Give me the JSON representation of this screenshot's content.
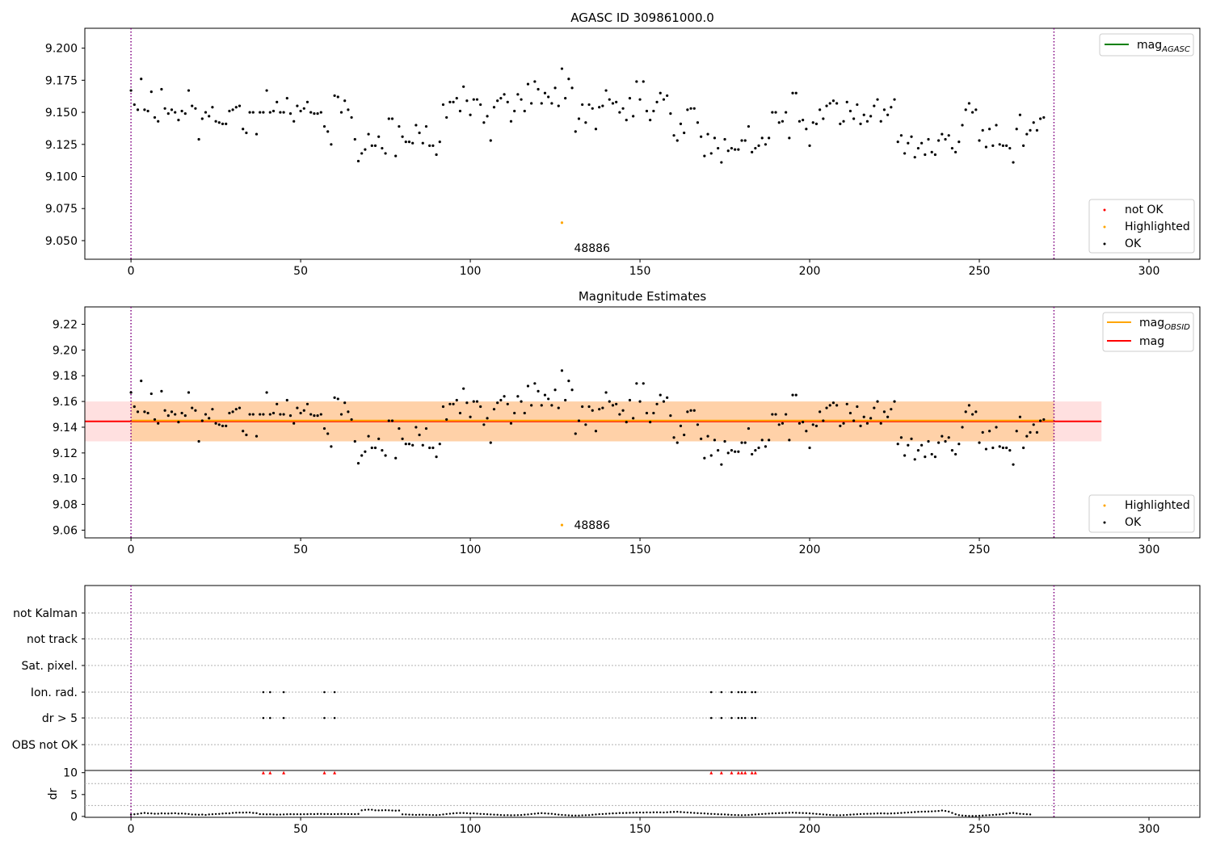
{
  "chart_data": [
    {
      "type": "scatter",
      "title": "AGASC ID 309861000.0",
      "xlim": [
        -13.6,
        315.0
      ],
      "ylim": [
        9.0355,
        9.2155
      ],
      "yticks": [
        9.05,
        9.075,
        9.1,
        9.125,
        9.15,
        9.175,
        9.2
      ],
      "ytick_labels": [
        "9.050",
        "9.075",
        "9.100",
        "9.125",
        "9.150",
        "9.175",
        "9.200"
      ],
      "xticks": [
        0,
        50,
        100,
        150,
        200,
        250,
        300
      ],
      "xtick_labels": [
        "0",
        "50",
        "100",
        "150",
        "200",
        "250",
        "300"
      ],
      "vlines": [
        0,
        272
      ],
      "highlight": {
        "x": 127,
        "y": 9.064,
        "label": "48886"
      },
      "legend_top": {
        "entries": [
          {
            "label": "mag",
            "sub": "AGASC",
            "color": "#008000"
          }
        ],
        "position": "top-right"
      },
      "legend_bottom": {
        "entries": [
          {
            "label": "not OK",
            "color": "#ff0000"
          },
          {
            "label": "Highlighted",
            "color": "#ffa500"
          },
          {
            "label": "OK",
            "color": "#000000"
          }
        ],
        "position": "lower-right"
      }
    },
    {
      "type": "scatter",
      "title": "Magnitude Estimates",
      "xlim": [
        -13.6,
        315.0
      ],
      "ylim": [
        9.054,
        9.2335
      ],
      "yticks": [
        9.06,
        9.08,
        9.1,
        9.12,
        9.14,
        9.16,
        9.18,
        9.2,
        9.22
      ],
      "ytick_labels": [
        "9.06",
        "9.08",
        "9.10",
        "9.12",
        "9.14",
        "9.16",
        "9.18",
        "9.20",
        "9.22"
      ],
      "xticks": [
        0,
        50,
        100,
        150,
        200,
        250,
        300
      ],
      "xtick_labels": [
        "0",
        "50",
        "100",
        "150",
        "200",
        "250",
        "300"
      ],
      "vlines": [
        0,
        272
      ],
      "mag": 9.1445,
      "mag_obsid": 9.1445,
      "band_mag": [
        9.129,
        9.16
      ],
      "band_mag_obsid": [
        9.129,
        9.16
      ],
      "band_mag_range": [
        -13.6,
        286
      ],
      "band_obsid_range": [
        0,
        272
      ],
      "highlight": {
        "x": 127,
        "y": 9.064,
        "label": "48886"
      },
      "legend_top": {
        "entries": [
          {
            "label": "mag",
            "sub": "OBSID",
            "color": "#ffa500"
          },
          {
            "label": "mag",
            "sub": "",
            "color": "#ff0000"
          }
        ],
        "position": "top-right"
      },
      "legend_bottom": {
        "entries": [
          {
            "label": "Highlighted",
            "color": "#ffa500"
          },
          {
            "label": "OK",
            "color": "#000000"
          }
        ],
        "position": "lower-right"
      }
    },
    {
      "type": "flags",
      "categories": [
        "not Kalman",
        "not track",
        "Sat. pixel.",
        "Ion. rad.",
        "dr > 5",
        "OBS not OK"
      ],
      "flag_indices": {
        "Ion. rad.": [
          39,
          41,
          45,
          57,
          60,
          171,
          174,
          177,
          179,
          180,
          181,
          183,
          184
        ],
        "dr > 5": [
          39,
          41,
          45,
          57,
          60,
          171,
          174,
          177,
          179,
          180,
          181,
          183,
          184
        ]
      },
      "vlines": [
        0,
        272
      ]
    },
    {
      "type": "scatter",
      "ylabel": "dr",
      "ylim": [
        -0.2,
        10.5
      ],
      "yticks": [
        0,
        5,
        10
      ],
      "ytick_labels": [
        "0",
        "5",
        "10"
      ],
      "xticks": [
        0,
        50,
        100,
        150,
        200,
        250,
        300
      ],
      "xtick_labels": [
        "0",
        "50",
        "100",
        "150",
        "200",
        "250",
        "300"
      ],
      "clipped_high_indices": [
        39,
        41,
        45,
        57,
        60,
        171,
        174,
        177,
        179,
        180,
        181,
        183,
        184
      ],
      "dr_values": [
        0.42,
        0.5,
        0.58,
        0.71,
        0.8,
        0.72,
        0.69,
        0.61,
        0.62,
        0.7,
        0.67,
        0.66,
        0.71,
        0.73,
        0.64,
        0.67,
        0.61,
        0.55,
        0.44,
        0.43,
        0.39,
        0.43,
        0.35,
        0.45,
        0.5,
        0.55,
        0.58,
        0.66,
        0.71,
        0.7,
        0.81,
        0.85,
        0.88,
        0.87,
        0.89,
        0.9,
        0.8,
        0.75,
        0.52,
        0.5,
        0.48,
        0.5,
        0.45,
        0.42,
        0.44,
        0.46,
        0.5,
        0.52,
        0.5,
        0.51,
        0.5,
        0.51,
        0.52,
        0.55,
        0.52,
        0.57,
        0.58,
        0.54,
        0.55,
        0.52,
        0.53,
        0.54,
        0.57,
        0.55,
        0.54,
        0.53,
        0.52,
        0.56,
        1.4,
        1.5,
        1.55,
        1.52,
        1.4,
        1.38,
        1.4,
        1.42,
        1.4,
        1.35,
        1.32,
        1.35,
        0.48,
        0.45,
        0.42,
        0.38,
        0.35,
        0.38,
        0.39,
        0.37,
        0.35,
        0.32,
        0.3,
        0.35,
        0.45,
        0.55,
        0.62,
        0.7,
        0.76,
        0.78,
        0.78,
        0.74,
        0.68,
        0.7,
        0.65,
        0.58,
        0.55,
        0.5,
        0.46,
        0.41,
        0.38,
        0.32,
        0.28,
        0.3,
        0.26,
        0.28,
        0.3,
        0.32,
        0.4,
        0.45,
        0.55,
        0.62,
        0.7,
        0.75,
        0.7,
        0.65,
        0.6,
        0.5,
        0.42,
        0.35,
        0.3,
        0.25,
        0.2,
        0.2,
        0.2,
        0.25,
        0.28,
        0.3,
        0.38,
        0.45,
        0.52,
        0.55,
        0.6,
        0.65,
        0.7,
        0.72,
        0.78,
        0.78,
        0.8,
        0.82,
        0.85,
        0.88,
        0.9,
        0.88,
        0.92,
        0.9,
        0.93,
        0.95,
        0.92,
        0.9,
        0.95,
        1.0,
        1.02,
        1.05,
        1.0,
        0.95,
        0.9,
        0.85,
        0.8,
        0.75,
        0.72,
        0.68,
        0.62,
        0.58,
        0.55,
        0.5,
        0.48,
        0.45,
        0.4,
        0.35,
        0.32,
        0.3,
        0.28,
        0.3,
        0.32,
        0.38,
        0.45,
        0.5,
        0.55,
        0.6,
        0.65,
        0.7,
        0.72,
        0.75,
        0.78,
        0.8,
        0.82,
        0.85,
        0.82,
        0.8,
        0.78,
        0.75,
        0.7,
        0.65,
        0.58,
        0.52,
        0.45,
        0.4,
        0.35,
        0.3,
        0.28,
        0.28,
        0.3,
        0.35,
        0.4,
        0.45,
        0.5,
        0.55,
        0.58,
        0.6,
        0.62,
        0.65,
        0.68,
        0.7,
        0.68,
        0.65,
        0.68,
        0.7,
        0.75,
        0.8,
        0.85,
        0.9,
        0.95,
        1.0,
        1.05,
        1.08,
        1.1,
        1.12,
        1.15,
        1.2,
        1.25,
        1.35,
        1.25,
        1.1,
        0.8,
        0.5,
        0.3,
        0.2,
        0.15,
        0.12,
        0.1,
        0.12,
        0.15,
        0.2,
        0.25,
        0.3,
        0.35,
        0.4,
        0.45,
        0.55,
        0.65,
        0.75,
        0.8,
        0.7,
        0.6,
        0.55,
        0.5,
        0.45
      ]
    }
  ],
  "mag_series": [
    9.167,
    9.156,
    9.152,
    9.176,
    9.152,
    9.151,
    9.166,
    9.146,
    9.143,
    9.168,
    9.153,
    9.149,
    9.152,
    9.15,
    9.144,
    9.151,
    9.149,
    9.167,
    9.155,
    9.153,
    9.129,
    9.145,
    9.15,
    9.147,
    9.154,
    9.143,
    9.142,
    9.141,
    9.141,
    9.151,
    9.152,
    9.154,
    9.155,
    9.137,
    9.134,
    9.15,
    9.15,
    9.133,
    9.15,
    9.15,
    9.167,
    9.15,
    9.151,
    9.158,
    9.15,
    9.15,
    9.161,
    9.149,
    9.143,
    9.155,
    9.151,
    9.153,
    9.158,
    9.15,
    9.149,
    9.149,
    9.15,
    9.139,
    9.135,
    9.125,
    9.163,
    9.162,
    9.15,
    9.159,
    9.152,
    9.146,
    9.129,
    9.112,
    9.118,
    9.121,
    9.133,
    9.124,
    9.124,
    9.131,
    9.122,
    9.118,
    9.145,
    9.145,
    9.116,
    9.139,
    9.131,
    9.127,
    9.127,
    9.126,
    9.14,
    9.134,
    9.126,
    9.139,
    9.124,
    9.124,
    9.117,
    9.127,
    9.156,
    9.146,
    9.158,
    9.158,
    9.161,
    9.151,
    9.17,
    9.159,
    9.148,
    9.16,
    9.16,
    9.156,
    9.142,
    9.147,
    9.128,
    9.154,
    9.159,
    9.161,
    9.164,
    9.158,
    9.143,
    9.151,
    9.164,
    9.16,
    9.151,
    9.172,
    9.157,
    9.174,
    9.168,
    9.157,
    9.165,
    9.162,
    9.157,
    9.169,
    9.155,
    9.184,
    9.161,
    9.176,
    9.169,
    9.135,
    9.145,
    9.156,
    9.142,
    9.156,
    9.153,
    9.137,
    9.154,
    9.155,
    9.167,
    9.16,
    9.157,
    9.158,
    9.15,
    9.153,
    9.144,
    9.161,
    9.147,
    9.174,
    9.16,
    9.174,
    9.151,
    9.144,
    9.151,
    9.158,
    9.165,
    9.16,
    9.163,
    9.149,
    9.132,
    9.128,
    9.141,
    9.134,
    9.152,
    9.153,
    9.153,
    9.142,
    9.131,
    9.116,
    9.133,
    9.118,
    9.13,
    9.122,
    9.111,
    9.129,
    9.12,
    9.122,
    9.121,
    9.121,
    9.128,
    9.128,
    9.139,
    9.119,
    9.122,
    9.124,
    9.13,
    9.125,
    9.13,
    9.15,
    9.15,
    9.142,
    9.143,
    9.15,
    9.13,
    9.165,
    9.165,
    9.143,
    9.144,
    9.137,
    9.124,
    9.142,
    9.141,
    9.152,
    9.145,
    9.155,
    9.157,
    9.159,
    9.157,
    9.141,
    9.143,
    9.158,
    9.151,
    9.145,
    9.156,
    9.141,
    9.148,
    9.143,
    9.147,
    9.155,
    9.16,
    9.143,
    9.152,
    9.148,
    9.154,
    9.16,
    9.127,
    9.132,
    9.118,
    9.126,
    9.131,
    9.115,
    9.122,
    9.126,
    9.117,
    9.129,
    9.119,
    9.117,
    9.128,
    9.133,
    9.129,
    9.132,
    9.122,
    9.119,
    9.127,
    9.14,
    9.152,
    9.157,
    9.15,
    9.152,
    9.128,
    9.136,
    9.123,
    9.137,
    9.124,
    9.14,
    9.125,
    9.124,
    9.124,
    9.122,
    9.111,
    9.137,
    9.148,
    9.124,
    9.133,
    9.136,
    9.142,
    9.136,
    9.145,
    9.146
  ]
}
